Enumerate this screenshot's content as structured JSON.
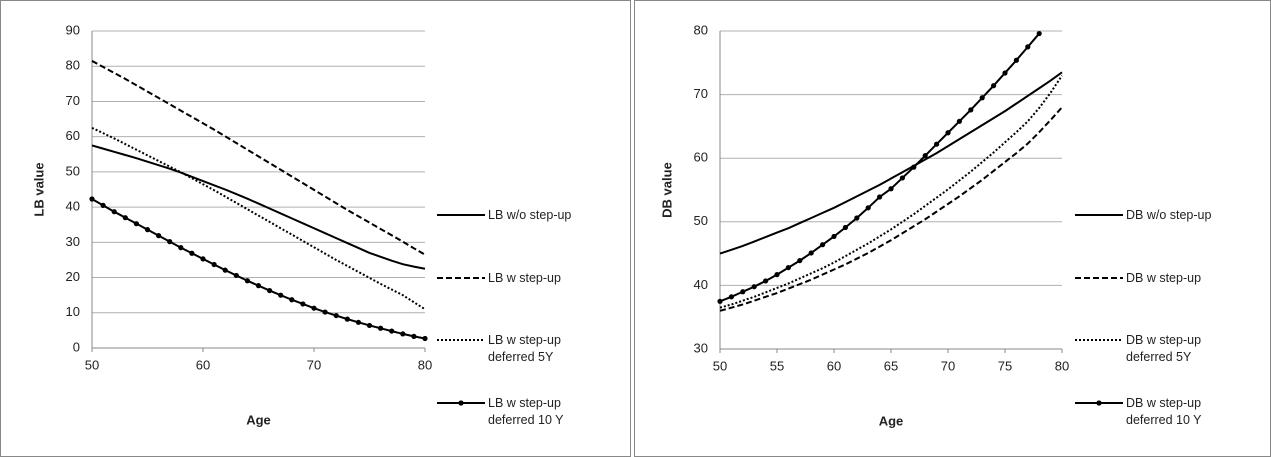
{
  "chart_data": [
    {
      "type": "line",
      "x_label": "Age",
      "y_label": "LB value",
      "x": [
        50,
        51,
        52,
        53,
        54,
        55,
        56,
        57,
        58,
        59,
        60,
        61,
        62,
        63,
        64,
        65,
        66,
        67,
        68,
        69,
        70,
        71,
        72,
        73,
        74,
        75,
        76,
        77,
        78,
        79,
        80
      ],
      "xlim": [
        50,
        80
      ],
      "xticks": [
        50,
        60,
        70,
        80
      ],
      "ylim": [
        0,
        90
      ],
      "yticks": [
        0,
        10,
        20,
        30,
        40,
        50,
        60,
        70,
        80,
        90
      ],
      "grid": true,
      "series": [
        {
          "name": "LB w/o step-up",
          "color": "#000000",
          "style": "solid",
          "values": [
            57.5,
            56.6,
            55.7,
            54.8,
            53.9,
            52.9,
            51.9,
            50.9,
            49.8,
            48.6,
            47.4,
            46.2,
            45.0,
            43.7,
            42.4,
            41.0,
            39.6,
            38.2,
            36.8,
            35.4,
            34.0,
            32.6,
            31.2,
            29.8,
            28.4,
            27.0,
            25.9,
            24.8,
            23.8,
            23.1,
            22.5
          ]
        },
        {
          "name": "LB w step-up",
          "color": "#000000",
          "style": "dashed",
          "values": [
            81.5,
            79.8,
            78.1,
            76.4,
            74.6,
            72.8,
            71.0,
            69.2,
            67.4,
            65.6,
            63.8,
            62.0,
            60.1,
            58.2,
            56.3,
            54.4,
            52.5,
            50.6,
            48.7,
            46.8,
            44.9,
            43.0,
            41.1,
            39.2,
            37.4,
            35.6,
            33.8,
            32.0,
            30.2,
            28.3,
            26.5
          ]
        },
        {
          "name": "LB w step-up deferred 5Y",
          "color": "#000000",
          "style": "dotted",
          "values": [
            62.5,
            61.0,
            59.5,
            57.9,
            56.3,
            54.7,
            53.1,
            51.5,
            49.9,
            48.2,
            46.5,
            44.8,
            43.0,
            41.2,
            39.4,
            37.6,
            35.8,
            34.0,
            32.2,
            30.4,
            28.6,
            26.8,
            25.0,
            23.3,
            21.6,
            19.9,
            18.2,
            16.6,
            15.0,
            13.0,
            11.0
          ]
        },
        {
          "name": "LB w step-up deferred 10 Y",
          "color": "#000000",
          "style": "solid",
          "marker": "circle",
          "values": [
            42.3,
            40.5,
            38.7,
            37.0,
            35.3,
            33.6,
            31.9,
            30.2,
            28.5,
            26.9,
            25.3,
            23.7,
            22.1,
            20.6,
            19.1,
            17.7,
            16.3,
            15.0,
            13.7,
            12.5,
            11.3,
            10.2,
            9.2,
            8.2,
            7.3,
            6.4,
            5.6,
            4.8,
            4.0,
            3.3,
            2.7
          ]
        }
      ]
    },
    {
      "type": "line",
      "x_label": "Age",
      "y_label": "DB value",
      "x": [
        50,
        51,
        52,
        53,
        54,
        55,
        56,
        57,
        58,
        59,
        60,
        61,
        62,
        63,
        64,
        65,
        66,
        67,
        68,
        69,
        70,
        71,
        72,
        73,
        74,
        75,
        76,
        77,
        78,
        79,
        80
      ],
      "xlim": [
        50,
        80
      ],
      "xticks": [
        50,
        55,
        60,
        65,
        70,
        75,
        80
      ],
      "ylim": [
        30,
        80
      ],
      "yticks": [
        30,
        40,
        50,
        60,
        70,
        80
      ],
      "grid": true,
      "series": [
        {
          "name": "DB w/o step-up",
          "color": "#000000",
          "style": "solid",
          "values": [
            45.0,
            45.6,
            46.2,
            46.9,
            47.6,
            48.3,
            49.0,
            49.8,
            50.6,
            51.4,
            52.2,
            53.1,
            54.0,
            54.9,
            55.8,
            56.8,
            57.8,
            58.8,
            59.8,
            60.8,
            61.9,
            63.0,
            64.1,
            65.2,
            66.3,
            67.4,
            68.6,
            69.8,
            71.0,
            72.2,
            73.5
          ]
        },
        {
          "name": "DB w step-up",
          "color": "#000000",
          "style": "dashed",
          "values": [
            36.0,
            36.5,
            37.0,
            37.6,
            38.2,
            38.8,
            39.5,
            40.2,
            40.9,
            41.7,
            42.5,
            43.3,
            44.2,
            45.1,
            46.1,
            47.1,
            48.2,
            49.3,
            50.4,
            51.6,
            52.8,
            54.0,
            55.3,
            56.6,
            58.0,
            59.4,
            60.8,
            62.3,
            64.1,
            66.0,
            68.0
          ]
        },
        {
          "name": "DB w step-up deferred 5Y",
          "color": "#000000",
          "style": "dotted",
          "values": [
            36.5,
            37.0,
            37.6,
            38.2,
            38.9,
            39.6,
            40.3,
            41.1,
            41.9,
            42.7,
            43.6,
            44.6,
            45.6,
            46.6,
            47.7,
            48.8,
            50.0,
            51.2,
            52.5,
            53.8,
            55.1,
            56.5,
            57.9,
            59.4,
            60.9,
            62.5,
            64.1,
            65.8,
            67.9,
            70.3,
            73.0
          ]
        },
        {
          "name": "DB w step-up deferred 10 Y",
          "color": "#000000",
          "style": "solid",
          "marker": "circle",
          "values": [
            37.5,
            38.2,
            39.0,
            39.8,
            40.7,
            41.7,
            42.8,
            43.9,
            45.1,
            46.4,
            47.7,
            49.1,
            50.6,
            52.2,
            53.9,
            55.2,
            56.9,
            58.6,
            60.4,
            62.2,
            64.0,
            65.8,
            67.6,
            69.5,
            71.4,
            73.4,
            75.4,
            77.5,
            79.6,
            null,
            null
          ]
        }
      ]
    }
  ]
}
